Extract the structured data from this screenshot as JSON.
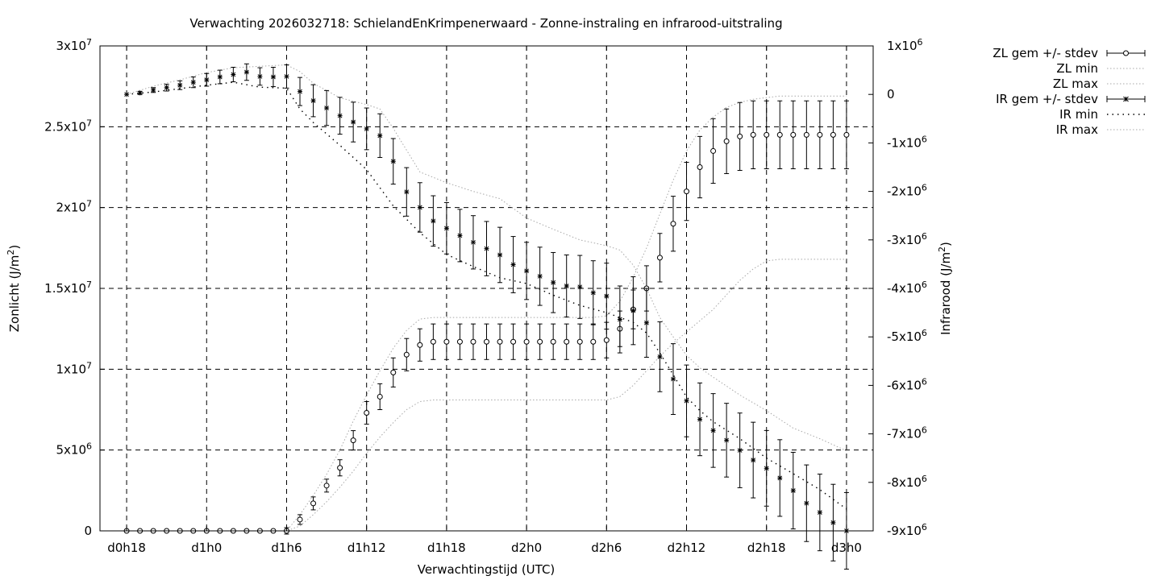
{
  "chart_data": {
    "type": "line",
    "title": "Verwachting 2026032718: SchielandEnKrimpenerwaard - Zonne-instraling en infrarood-uitstraling",
    "xlabel": "Verwachtingstijd (UTC)",
    "ylabel_base": "Zonlicht (J/m",
    "ylabel_sup": "2",
    "ylabel_tail": ")",
    "y2label_base": "Infrarood (J/m",
    "y2label_sup": "2",
    "y2label_tail": ")",
    "x_unit": "hours since d0h18",
    "xlim": [
      -2,
      56
    ],
    "ylim": [
      0,
      30000000
    ],
    "y2lim": [
      -9000000,
      1000000
    ],
    "grid": true,
    "legend_position": "outside-top-right",
    "x_ticks": [
      {
        "v": 0,
        "label": "d0h18"
      },
      {
        "v": 6,
        "label": "d1h0"
      },
      {
        "v": 12,
        "label": "d1h6"
      },
      {
        "v": 18,
        "label": "d1h12"
      },
      {
        "v": 24,
        "label": "d1h18"
      },
      {
        "v": 30,
        "label": "d2h0"
      },
      {
        "v": 36,
        "label": "d2h6"
      },
      {
        "v": 42,
        "label": "d2h12"
      },
      {
        "v": 48,
        "label": "d2h18"
      },
      {
        "v": 54,
        "label": "d3h0"
      }
    ],
    "y_ticks": [
      {
        "v": 0,
        "base": "0",
        "exp": ""
      },
      {
        "v": 5000000,
        "base": "5x10",
        "exp": "6"
      },
      {
        "v": 10000000,
        "base": "1x10",
        "exp": "7"
      },
      {
        "v": 15000000,
        "base": "1.5x10",
        "exp": "7"
      },
      {
        "v": 20000000,
        "base": "2x10",
        "exp": "7"
      },
      {
        "v": 25000000,
        "base": "2.5x10",
        "exp": "7"
      },
      {
        "v": 30000000,
        "base": "3x10",
        "exp": "7"
      }
    ],
    "y2_ticks": [
      {
        "v": 1000000,
        "base": "1x10",
        "exp": "6"
      },
      {
        "v": 0,
        "base": "0",
        "exp": ""
      },
      {
        "v": -1000000,
        "base": "-1x10",
        "exp": "6"
      },
      {
        "v": -2000000,
        "base": "-2x10",
        "exp": "6"
      },
      {
        "v": -3000000,
        "base": "-3x10",
        "exp": "6"
      },
      {
        "v": -4000000,
        "base": "-4x10",
        "exp": "6"
      },
      {
        "v": -5000000,
        "base": "-5x10",
        "exp": "6"
      },
      {
        "v": -6000000,
        "base": "-6x10",
        "exp": "6"
      },
      {
        "v": -7000000,
        "base": "-7x10",
        "exp": "6"
      },
      {
        "v": -8000000,
        "base": "-8x10",
        "exp": "6"
      },
      {
        "v": -9000000,
        "base": "-9x10",
        "exp": "6"
      }
    ],
    "legend": [
      {
        "label": "ZL gem +/- stdev",
        "kind": "zl-mean"
      },
      {
        "label": "ZL min",
        "kind": "env"
      },
      {
        "label": "ZL max",
        "kind": "env"
      },
      {
        "label": "IR gem +/- stdev",
        "kind": "ir-mean"
      },
      {
        "label": "IR min",
        "kind": "envdark"
      },
      {
        "label": "IR max",
        "kind": "env"
      }
    ],
    "series": [
      {
        "name": "ZL gem +/- stdev",
        "axis": "y",
        "marker": "circle",
        "x": [
          0,
          1,
          2,
          3,
          4,
          5,
          6,
          7,
          8,
          9,
          10,
          11,
          12,
          13,
          14,
          15,
          16,
          17,
          18,
          19,
          20,
          21,
          22,
          23,
          24,
          25,
          26,
          27,
          28,
          29,
          30,
          31,
          32,
          33,
          34,
          35,
          36,
          37,
          38,
          39,
          40,
          41,
          42,
          43,
          44,
          45,
          46,
          47,
          48,
          49,
          50,
          51,
          52,
          53,
          54
        ],
        "y": [
          0,
          0,
          0,
          0,
          0,
          0,
          0,
          0,
          0,
          0,
          0,
          0,
          0,
          700000,
          1700000,
          2800000,
          3900000,
          5600000,
          7300000,
          8300000,
          9800000,
          10900000,
          11500000,
          11700000,
          11700000,
          11700000,
          11700000,
          11700000,
          11700000,
          11700000,
          11700000,
          11700000,
          11700000,
          11700000,
          11700000,
          11700000,
          11800000,
          12500000,
          13700000,
          15000000,
          16900000,
          19000000,
          21000000,
          22500000,
          23500000,
          24100000,
          24400000,
          24500000,
          24500000,
          24500000,
          24500000,
          24500000,
          24500000,
          24500000,
          24500000
        ],
        "err": [
          0,
          0,
          0,
          0,
          0,
          0,
          0,
          0,
          0,
          0,
          0,
          0,
          200000,
          300000,
          400000,
          400000,
          500000,
          600000,
          700000,
          800000,
          900000,
          1000000,
          1000000,
          1100000,
          1100000,
          1100000,
          1100000,
          1100000,
          1100000,
          1100000,
          1100000,
          1100000,
          1100000,
          1100000,
          1100000,
          1100000,
          1100000,
          1100000,
          1200000,
          1400000,
          1500000,
          1700000,
          1800000,
          1900000,
          2000000,
          2000000,
          2100000,
          2100000,
          2100000,
          2100000,
          2100000,
          2100000,
          2100000,
          2100000,
          2100000
        ]
      },
      {
        "name": "ZL min",
        "axis": "y",
        "x": [
          0,
          1,
          2,
          3,
          4,
          5,
          6,
          7,
          8,
          9,
          10,
          11,
          12,
          13,
          14,
          15,
          16,
          17,
          18,
          19,
          20,
          21,
          22,
          23,
          24,
          25,
          26,
          27,
          28,
          29,
          30,
          31,
          32,
          33,
          34,
          35,
          36,
          37,
          38,
          39,
          40,
          41,
          42,
          43,
          44,
          45,
          46,
          47,
          48,
          49,
          50,
          51,
          52,
          53,
          54
        ],
        "y": [
          0,
          0,
          0,
          0,
          0,
          0,
          0,
          0,
          0,
          0,
          0,
          0,
          0,
          300000,
          1000000,
          1800000,
          2700000,
          3700000,
          4800000,
          5800000,
          6700000,
          7500000,
          8000000,
          8100000,
          8100000,
          8100000,
          8100000,
          8100000,
          8100000,
          8100000,
          8100000,
          8100000,
          8100000,
          8100000,
          8100000,
          8100000,
          8100000,
          8300000,
          9000000,
          9900000,
          10800000,
          11600000,
          12300000,
          13000000,
          13700000,
          14600000,
          15500000,
          16200000,
          16700000,
          16800000,
          16800000,
          16800000,
          16800000,
          16800000,
          16800000
        ]
      },
      {
        "name": "ZL max",
        "axis": "y",
        "x": [
          0,
          1,
          2,
          3,
          4,
          5,
          6,
          7,
          8,
          9,
          10,
          11,
          12,
          13,
          14,
          15,
          16,
          17,
          18,
          19,
          20,
          21,
          22,
          23,
          24,
          25,
          26,
          27,
          28,
          29,
          30,
          31,
          32,
          33,
          34,
          35,
          36,
          37,
          38,
          39,
          40,
          41,
          42,
          43,
          44,
          45,
          46,
          47,
          48,
          49,
          50,
          51,
          52,
          53,
          54
        ],
        "y": [
          0,
          0,
          0,
          0,
          0,
          0,
          0,
          0,
          0,
          0,
          0,
          0,
          0,
          1000000,
          2200000,
          3500000,
          5000000,
          6800000,
          8400000,
          9900000,
          11300000,
          12400000,
          13100000,
          13200000,
          13200000,
          13200000,
          13200000,
          13200000,
          13200000,
          13200000,
          13200000,
          13200000,
          13200000,
          13200000,
          13200000,
          13200000,
          13300000,
          14200000,
          15700000,
          17500000,
          19600000,
          21700000,
          23500000,
          24800000,
          25600000,
          26200000,
          26500000,
          26700000,
          26800000,
          26900000,
          26900000,
          26900000,
          26900000,
          26900000,
          26900000
        ]
      },
      {
        "name": "IR gem +/- stdev",
        "axis": "y2",
        "marker": "star",
        "x": [
          0,
          1,
          2,
          3,
          4,
          5,
          6,
          7,
          8,
          9,
          10,
          11,
          12,
          13,
          14,
          15,
          16,
          17,
          18,
          19,
          20,
          21,
          22,
          23,
          24,
          25,
          26,
          27,
          28,
          29,
          30,
          31,
          32,
          33,
          34,
          35,
          36,
          37,
          38,
          39,
          40,
          41,
          42,
          43,
          44,
          45,
          46,
          47,
          48,
          49,
          50,
          51,
          52,
          53,
          54
        ],
        "y": [
          0,
          30000,
          90000,
          140000,
          190000,
          250000,
          300000,
          360000,
          410000,
          460000,
          370000,
          360000,
          370000,
          60000,
          -130000,
          -280000,
          -440000,
          -570000,
          -710000,
          -850000,
          -1380000,
          -2010000,
          -2330000,
          -2610000,
          -2760000,
          -2910000,
          -3050000,
          -3180000,
          -3310000,
          -3510000,
          -3640000,
          -3750000,
          -3880000,
          -3950000,
          -3970000,
          -4090000,
          -4160000,
          -4640000,
          -4460000,
          -4710000,
          -5410000,
          -5870000,
          -6320000,
          -6700000,
          -6930000,
          -7130000,
          -7340000,
          -7540000,
          -7710000,
          -7910000,
          -8170000,
          -8430000,
          -8620000,
          -8830000,
          -9000000
        ],
        "err": [
          0,
          30000,
          50000,
          70000,
          90000,
          110000,
          130000,
          140000,
          150000,
          170000,
          180000,
          200000,
          240000,
          290000,
          330000,
          360000,
          380000,
          410000,
          430000,
          450000,
          470000,
          500000,
          510000,
          520000,
          530000,
          540000,
          550000,
          560000,
          570000,
          580000,
          590000,
          600000,
          620000,
          640000,
          650000,
          660000,
          680000,
          690000,
          700000,
          710000,
          720000,
          730000,
          740000,
          750000,
          760000,
          760000,
          770000,
          780000,
          780000,
          790000,
          790000,
          790000,
          790000,
          790000,
          790000
        ]
      },
      {
        "name": "IR min",
        "axis": "y2",
        "x": [
          0,
          2,
          4,
          6,
          8,
          10,
          12,
          13,
          14,
          16,
          18,
          20,
          22,
          24,
          26,
          28,
          30,
          32,
          34,
          36,
          37,
          38,
          39,
          40,
          41,
          42,
          43,
          44,
          46,
          48,
          50,
          52,
          54
        ],
        "y": [
          0,
          50000,
          120000,
          190000,
          250000,
          150000,
          130000,
          -300000,
          -580000,
          -1050000,
          -1550000,
          -2300000,
          -2850000,
          -3300000,
          -3550000,
          -3780000,
          -3900000,
          -4140000,
          -4350000,
          -4500000,
          -4600000,
          -4700000,
          -4920000,
          -5330000,
          -5780000,
          -6240000,
          -6520000,
          -6750000,
          -7100000,
          -7500000,
          -7820000,
          -8150000,
          -8550000
        ]
      },
      {
        "name": "IR max",
        "axis": "y2",
        "x": [
          0,
          2,
          4,
          6,
          8,
          10,
          12,
          13,
          14,
          16,
          18,
          19,
          20,
          22,
          24,
          26,
          28,
          30,
          32,
          34,
          36,
          37,
          38,
          39,
          40,
          41,
          42,
          43,
          44,
          46,
          48,
          50,
          52,
          54
        ],
        "y": [
          0,
          170000,
          300000,
          450000,
          550000,
          580000,
          610000,
          470000,
          230000,
          -70000,
          -210000,
          -300000,
          -700000,
          -1600000,
          -1820000,
          -2000000,
          -2150000,
          -2550000,
          -2780000,
          -3000000,
          -3120000,
          -3210000,
          -3520000,
          -4000000,
          -4600000,
          -5000000,
          -5380000,
          -5640000,
          -5830000,
          -6200000,
          -6520000,
          -6880000,
          -7100000,
          -7350000
        ]
      }
    ]
  }
}
